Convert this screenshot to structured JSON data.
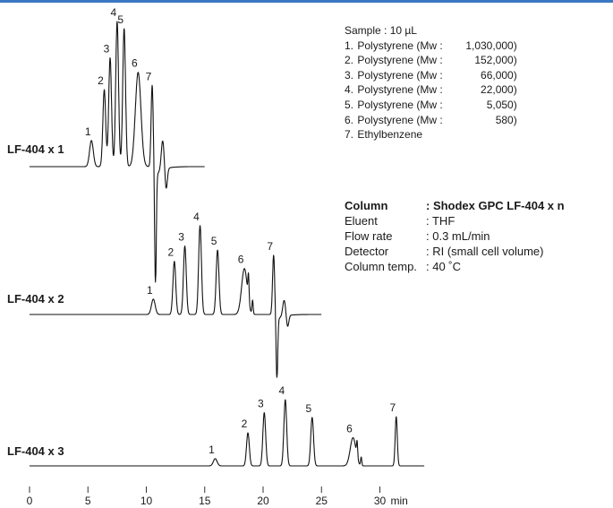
{
  "chart_data": {
    "type": "line",
    "x_axis": {
      "ticks": [
        0,
        5,
        10,
        15,
        20,
        25,
        30
      ],
      "unit": "min",
      "xlim": [
        0,
        35
      ]
    },
    "samples_title": "Sample : 10 µL",
    "samples": [
      {
        "num": "1.",
        "name": "Polystyrene",
        "mw": "1,030,000"
      },
      {
        "num": "2.",
        "name": "Polystyrene",
        "mw": "152,000"
      },
      {
        "num": "3.",
        "name": "Polystyrene",
        "mw": "66,000"
      },
      {
        "num": "4.",
        "name": "Polystyrene",
        "mw": "22,000"
      },
      {
        "num": "5.",
        "name": "Polystyrene",
        "mw": "5,050"
      },
      {
        "num": "6.",
        "name": "Polystyrene",
        "mw": "580"
      },
      {
        "num": "7.",
        "name": "Ethylbenzene",
        "mw": ""
      }
    ],
    "conditions": [
      {
        "key": "Column",
        "value": ": Shodex GPC LF-404 x n",
        "bold": true
      },
      {
        "key": "Eluent",
        "value": ": THF",
        "bold": false
      },
      {
        "key": "Flow rate",
        "value": ": 0.3 mL/min",
        "bold": false
      },
      {
        "key": "Detector",
        "value": ": RI (small cell volume)",
        "bold": false
      },
      {
        "key": "Column temp.",
        "value": ": 40 ˚C",
        "bold": false
      }
    ],
    "series": [
      {
        "name": "LF-404 x 1",
        "x_range": [
          0,
          15
        ],
        "peaks": [
          {
            "label": "1",
            "t": 5.3,
            "h": 0.18
          },
          {
            "label": "2",
            "t": 6.4,
            "h": 0.53
          },
          {
            "label": "3",
            "t": 6.9,
            "h": 0.75
          },
          {
            "label": "4",
            "t": 7.5,
            "h": 1.0
          },
          {
            "label": "5",
            "t": 8.1,
            "h": 0.95
          },
          {
            "label": "6",
            "t": 9.3,
            "h": 0.65
          },
          {
            "label": "7",
            "t": 10.5,
            "h": 0.56
          }
        ],
        "negative_dip": 0.8
      },
      {
        "name": "LF-404 x 2",
        "x_range": [
          0,
          25
        ],
        "peaks": [
          {
            "label": "1",
            "t": 10.6,
            "h": 0.15
          },
          {
            "label": "2",
            "t": 12.4,
            "h": 0.52
          },
          {
            "label": "3",
            "t": 13.3,
            "h": 0.67
          },
          {
            "label": "4",
            "t": 14.6,
            "h": 0.87
          },
          {
            "label": "5",
            "t": 16.1,
            "h": 0.63
          },
          {
            "label": "6",
            "t": 18.4,
            "h": 0.45
          },
          {
            "label": "7",
            "t": 20.9,
            "h": 0.58
          }
        ],
        "negative_dip": 0.62
      },
      {
        "name": "LF-404 x 3",
        "x_range": [
          0,
          33.8
        ],
        "peaks": [
          {
            "label": "1",
            "t": 15.9,
            "h": 0.09
          },
          {
            "label": "2",
            "t": 18.7,
            "h": 0.41
          },
          {
            "label": "3",
            "t": 20.1,
            "h": 0.66
          },
          {
            "label": "4",
            "t": 21.9,
            "h": 0.82
          },
          {
            "label": "5",
            "t": 24.2,
            "h": 0.6
          },
          {
            "label": "6",
            "t": 27.7,
            "h": 0.35
          },
          {
            "label": "7",
            "t": 31.4,
            "h": 0.61
          }
        ],
        "negative_dip": 0
      }
    ]
  }
}
